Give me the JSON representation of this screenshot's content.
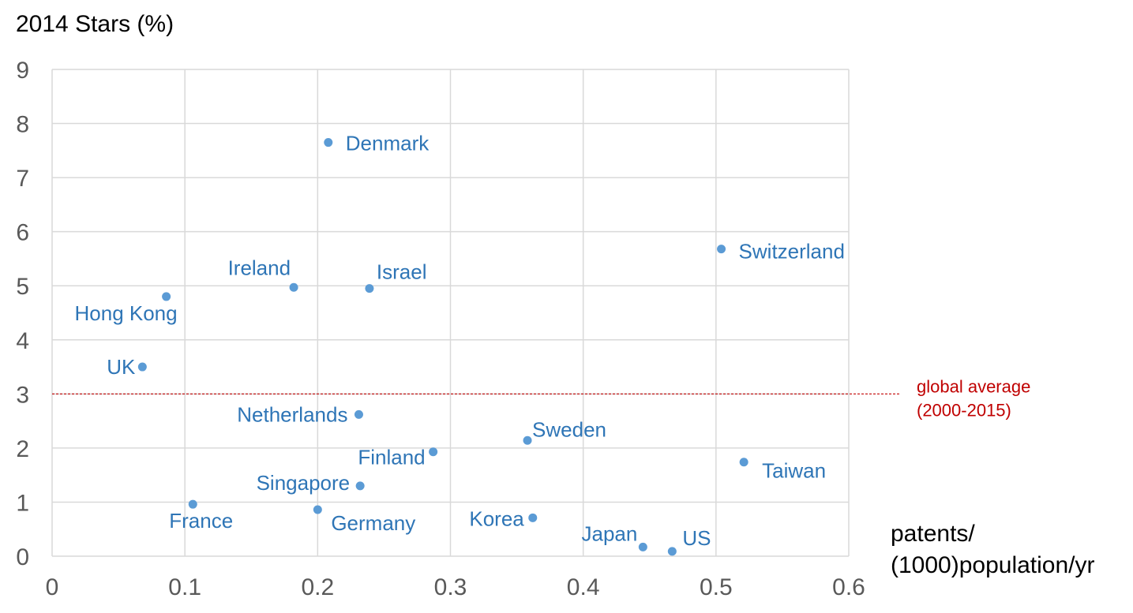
{
  "chart_data": {
    "type": "scatter",
    "title": "",
    "ylabel": "2014 Stars (%)",
    "xlabel_line1": "patents/",
    "xlabel_line2": "(1000)population/yr",
    "xlim": [
      0,
      0.6
    ],
    "ylim": [
      0,
      9
    ],
    "x_ticks": [
      "0",
      "0.1",
      "0.2",
      "0.3",
      "0.4",
      "0.5",
      "0.6"
    ],
    "y_ticks": [
      "0",
      "1",
      "2",
      "3",
      "4",
      "5",
      "6",
      "7",
      "8",
      "9"
    ],
    "grid": true,
    "point_color": "#5b9bd5",
    "label_color": "#2e75b6",
    "points": [
      {
        "label": "Denmark",
        "x": 0.208,
        "y": 7.65
      },
      {
        "label": "Switzerland",
        "x": 0.504,
        "y": 5.68
      },
      {
        "label": "Ireland",
        "x": 0.182,
        "y": 4.97
      },
      {
        "label": "Israel",
        "x": 0.239,
        "y": 4.95
      },
      {
        "label": "Hong Kong",
        "x": 0.086,
        "y": 4.8
      },
      {
        "label": "UK",
        "x": 0.068,
        "y": 3.5
      },
      {
        "label": "Netherlands",
        "x": 0.231,
        "y": 2.62
      },
      {
        "label": "Sweden",
        "x": 0.358,
        "y": 2.14
      },
      {
        "label": "Finland",
        "x": 0.287,
        "y": 1.93
      },
      {
        "label": "Taiwan",
        "x": 0.521,
        "y": 1.74
      },
      {
        "label": "Singapore",
        "x": 0.232,
        "y": 1.3
      },
      {
        "label": "France",
        "x": 0.106,
        "y": 0.96
      },
      {
        "label": "Germany",
        "x": 0.2,
        "y": 0.86
      },
      {
        "label": "Korea",
        "x": 0.362,
        "y": 0.71
      },
      {
        "label": "Japan",
        "x": 0.445,
        "y": 0.17
      },
      {
        "label": "US",
        "x": 0.467,
        "y": 0.09
      }
    ],
    "reference_line": {
      "y": 3,
      "label_line1": "global average",
      "label_line2": "(2000-2015)",
      "color": "#c00000"
    }
  }
}
